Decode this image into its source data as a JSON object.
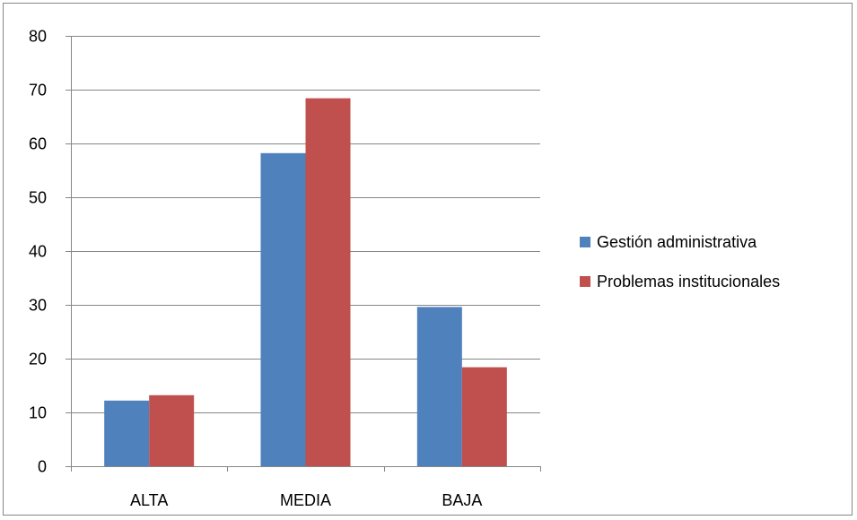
{
  "chart_data": {
    "type": "bar",
    "categories": [
      "ALTA",
      "MEDIA",
      "BAJA"
    ],
    "series": [
      {
        "name": "Gestión administrativa",
        "color": "#4F81BD",
        "values": [
          12.2,
          58.2,
          29.6
        ]
      },
      {
        "name": "Problemas institucionales",
        "color": "#C0504D",
        "values": [
          13.2,
          68.4,
          18.4
        ]
      }
    ],
    "y_ticks": [
      "0",
      "10",
      "20",
      "30",
      "40",
      "50",
      "60",
      "70",
      "80"
    ],
    "ylim": [
      0,
      80
    ],
    "grid": true,
    "legend_position": "right",
    "title": "",
    "xlabel": "",
    "ylabel": ""
  }
}
